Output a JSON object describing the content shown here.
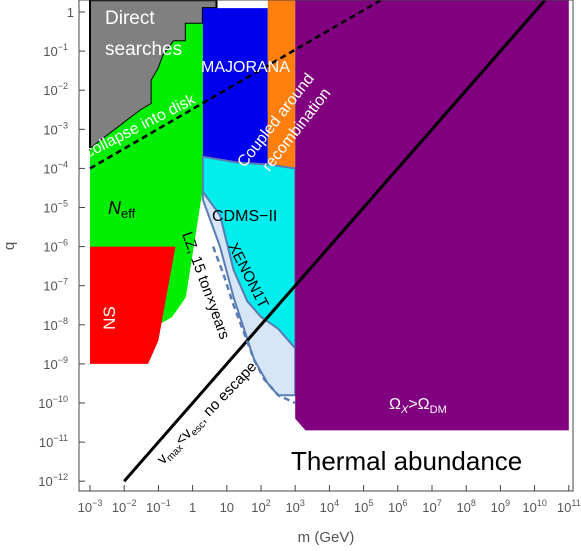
{
  "chart_data": {
    "type": "area",
    "title": "",
    "xlabel": "m (GeV)",
    "ylabel": "q",
    "x_scale": "log",
    "y_scale": "log",
    "xlim": [
      "1e-3",
      "1e11"
    ],
    "ylim": [
      "1e-12",
      "1"
    ],
    "grid": false,
    "x_ticks": [
      {
        "b": "10",
        "e": "−3"
      },
      {
        "b": "10",
        "e": "−2"
      },
      {
        "b": "10",
        "e": "−1"
      },
      {
        "b": "1",
        "e": ""
      },
      {
        "b": "10",
        "e": ""
      },
      {
        "b": "10",
        "e": "2"
      },
      {
        "b": "10",
        "e": "3"
      },
      {
        "b": "10",
        "e": "4"
      },
      {
        "b": "10",
        "e": "5"
      },
      {
        "b": "10",
        "e": "6"
      },
      {
        "b": "10",
        "e": "7"
      },
      {
        "b": "10",
        "e": "8"
      },
      {
        "b": "10",
        "e": "9"
      },
      {
        "b": "10",
        "e": "10"
      },
      {
        "b": "10",
        "e": "11"
      }
    ],
    "y_ticks": [
      {
        "b": "1",
        "e": ""
      },
      {
        "b": "10",
        "e": "−1"
      },
      {
        "b": "10",
        "e": "−2"
      },
      {
        "b": "10",
        "e": "−3"
      },
      {
        "b": "10",
        "e": "−4"
      },
      {
        "b": "10",
        "e": "−5"
      },
      {
        "b": "10",
        "e": "−6"
      },
      {
        "b": "10",
        "e": "−7"
      },
      {
        "b": "10",
        "e": "−8"
      },
      {
        "b": "10",
        "e": "−9"
      },
      {
        "b": "10",
        "e": "−10"
      },
      {
        "b": "10",
        "e": "−11"
      },
      {
        "b": "10",
        "e": "−12"
      }
    ],
    "regions": [
      {
        "name": "direct-searches-region",
        "color": "#808080",
        "stroke": "#000000",
        "points": [
          [
            -3,
            -3.5
          ],
          [
            -1.5,
            -2.5
          ],
          [
            -1.2,
            -2.35
          ],
          [
            -1.2,
            -1.75
          ],
          [
            -1,
            -1.45
          ],
          [
            -0.85,
            -1.1
          ],
          [
            -0.55,
            -0.75
          ],
          [
            -0.2,
            -0.75
          ],
          [
            -0.2,
            -0.3
          ],
          [
            0.3,
            -0.3
          ],
          [
            0.3,
            0.1
          ],
          [
            0.7,
            0.1
          ],
          [
            0.7,
            0.3
          ],
          [
            -3,
            0.3
          ]
        ]
      },
      {
        "name": "neff-region",
        "color": "#00ee00",
        "points": [
          [
            -3,
            -3.5
          ],
          [
            -1.5,
            -2.5
          ],
          [
            -1.2,
            -2.35
          ],
          [
            -1.2,
            -1.75
          ],
          [
            -1,
            -1.45
          ],
          [
            -0.85,
            -1.1
          ],
          [
            -0.55,
            -0.75
          ],
          [
            -0.2,
            -0.75
          ],
          [
            -0.2,
            -0.3
          ],
          [
            0.3,
            -0.3
          ],
          [
            0.3,
            -4.5
          ],
          [
            -0.2,
            -7.3
          ],
          [
            -0.6,
            -7.8
          ],
          [
            -1.2,
            -8.1
          ],
          [
            -3,
            -8.2
          ]
        ]
      },
      {
        "name": "majorana-region",
        "color": "#0000ee",
        "points": [
          [
            0.3,
            -0.3
          ],
          [
            0.3,
            0.1
          ],
          [
            2.2,
            0.1
          ],
          [
            2.2,
            -3.9
          ],
          [
            1.3,
            -3.85
          ],
          [
            0.3,
            -3.7
          ]
        ]
      },
      {
        "name": "coupled-recombination-region",
        "color": "#ff7f0e",
        "points": [
          [
            2.2,
            0.3
          ],
          [
            3.0,
            0.3
          ],
          [
            3.0,
            -4.4
          ],
          [
            2.2,
            -4.4
          ]
        ]
      },
      {
        "name": "cdms-region",
        "color": "#00eeee",
        "stroke": "#5a7db5",
        "points": [
          [
            0.3,
            -3.7
          ],
          [
            1.3,
            -3.85
          ],
          [
            2.2,
            -3.9
          ],
          [
            3.0,
            -4.0
          ],
          [
            3.0,
            -8.6
          ],
          [
            2.5,
            -8.1
          ],
          [
            2.0,
            -7.8
          ],
          [
            1.6,
            -7.4
          ],
          [
            1.2,
            -6.6
          ],
          [
            0.8,
            -5.2
          ],
          [
            0.3,
            -4.6
          ]
        ]
      },
      {
        "name": "xenon1t-region",
        "color": "#d6e6f6",
        "stroke": "#5a7db5",
        "points": [
          [
            0.3,
            -4.6
          ],
          [
            0.8,
            -5.2
          ],
          [
            1.2,
            -6.6
          ],
          [
            1.6,
            -7.4
          ],
          [
            2.0,
            -7.8
          ],
          [
            2.5,
            -8.1
          ],
          [
            3.0,
            -8.6
          ],
          [
            3.0,
            -9.8
          ],
          [
            2.5,
            -9.8
          ],
          [
            2.2,
            -9.5
          ],
          [
            1.8,
            -8.9
          ],
          [
            1.2,
            -7.3
          ],
          [
            0.8,
            -6.0
          ],
          [
            0.3,
            -4.8
          ]
        ]
      },
      {
        "name": "ns-region",
        "color": "#ff0000",
        "points": [
          [
            -3,
            -6
          ],
          [
            -0.5,
            -6
          ],
          [
            -1,
            -8.4
          ],
          [
            -1.3,
            -9
          ],
          [
            -3,
            -9
          ]
        ]
      },
      {
        "name": "relic-abundance-region",
        "color": "#800080",
        "points": [
          [
            3.0,
            0.3
          ],
          [
            11,
            0.3
          ],
          [
            11,
            -10.7
          ],
          [
            3.3,
            -10.7
          ],
          [
            3.0,
            -10.4
          ]
        ]
      }
    ],
    "lines": [
      {
        "name": "no-escape-line",
        "style": "solid",
        "color": "#000000",
        "points": [
          [
            -2,
            -12
          ],
          [
            10.3,
            0.3
          ]
        ]
      },
      {
        "name": "collapse-disk-line",
        "style": "dashed",
        "color": "#000000",
        "points": [
          [
            -3,
            -4
          ],
          [
            5.5,
            0.3
          ]
        ]
      },
      {
        "name": "lz-projection-line",
        "style": "dashed",
        "color": "#5a7db5",
        "points": [
          [
            0.6,
            -6
          ],
          [
            0.9,
            -6.7
          ],
          [
            1.2,
            -7.5
          ],
          [
            1.5,
            -8.2
          ],
          [
            1.8,
            -8.9
          ],
          [
            2.1,
            -9.4
          ],
          [
            2.5,
            -9.8
          ],
          [
            3.0,
            -10.0
          ]
        ]
      }
    ],
    "annotations": {
      "direct": "Direct",
      "searches": "searches",
      "majorana": "MAJORANA",
      "coupled": "Coupled around",
      "recombination": "recombination",
      "collapse": "collapse into disk",
      "neff_base": "N",
      "neff_sub": "eff",
      "cdms": "CDMS−II",
      "xenon": "XENON1T",
      "lz": "LZ, 15 ton×years",
      "ns": "NS",
      "vmax": "v",
      "vmax_sub": "max",
      "lt": "<v",
      "vesc_sub": "esc",
      "noescape": ", no escape",
      "omega_x": "Ω",
      "omega_x_sub": "X",
      "gt": ">Ω",
      "omega_dm_sub": "DM",
      "thermal": "Thermal abundance"
    },
    "colors": {
      "direct": "#808080",
      "neff": "#00ee00",
      "majorana": "#0000ee",
      "recombination": "#ff7f0e",
      "cdms": "#00eeee",
      "xenon": "#d6e6f6",
      "ns": "#ff0000",
      "relic": "#800080",
      "limit_line": "#5a7db5"
    }
  }
}
